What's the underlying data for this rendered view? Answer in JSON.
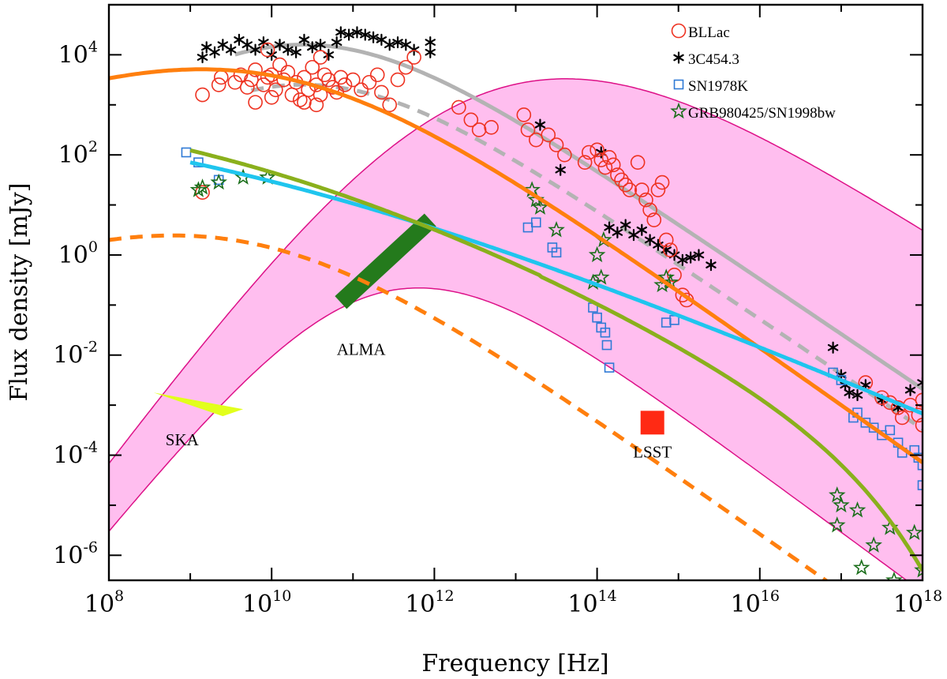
{
  "chart_data": {
    "type": "scatter",
    "title": "",
    "xlabel": "Frequency [Hz]",
    "ylabel": "Flux density [mJy]",
    "xscale": "log",
    "yscale": "log",
    "xlim_exp": [
      8,
      18
    ],
    "ylim_exp": [
      -6.5,
      5.0
    ],
    "x_ticks_exp": [
      8,
      10,
      12,
      14,
      16,
      18
    ],
    "y_ticks_exp": [
      -6,
      -4,
      -2,
      0,
      2,
      4
    ],
    "tick_base": "10",
    "legend_position": "top-right",
    "series": [
      {
        "name": "BLLac",
        "marker": "circle",
        "color": "#ee3322",
        "points": [
          [
            9.15,
            3.2
          ],
          [
            9.35,
            3.4
          ],
          [
            9.38,
            3.55
          ],
          [
            9.55,
            3.45
          ],
          [
            9.62,
            3.6
          ],
          [
            9.7,
            3.35
          ],
          [
            9.75,
            3.5
          ],
          [
            9.8,
            3.7
          ],
          [
            9.9,
            3.4
          ],
          [
            9.95,
            3.55
          ],
          [
            10.0,
            3.6
          ],
          [
            10.05,
            3.3
          ],
          [
            10.1,
            3.8
          ],
          [
            10.15,
            3.5
          ],
          [
            10.2,
            3.65
          ],
          [
            10.25,
            3.2
          ],
          [
            10.3,
            3.45
          ],
          [
            10.35,
            3.1
          ],
          [
            10.4,
            3.55
          ],
          [
            10.45,
            3.3
          ],
          [
            10.5,
            3.75
          ],
          [
            10.55,
            3.4
          ],
          [
            10.6,
            3.2
          ],
          [
            10.65,
            3.6
          ],
          [
            10.7,
            3.5
          ],
          [
            10.75,
            3.35
          ],
          [
            10.8,
            3.25
          ],
          [
            10.85,
            3.55
          ],
          [
            10.9,
            3.4
          ],
          [
            11.0,
            3.5
          ],
          [
            11.1,
            3.3
          ],
          [
            11.2,
            3.45
          ],
          [
            11.3,
            3.6
          ],
          [
            11.35,
            3.25
          ],
          [
            11.45,
            3.0
          ],
          [
            11.55,
            3.5
          ],
          [
            11.65,
            3.75
          ],
          [
            11.75,
            3.95
          ],
          [
            9.8,
            3.05
          ],
          [
            10.0,
            3.15
          ],
          [
            10.4,
            3.05
          ],
          [
            10.55,
            3.0
          ],
          [
            9.95,
            4.1
          ],
          [
            10.6,
            3.95
          ],
          [
            12.3,
            2.95
          ],
          [
            12.45,
            2.7
          ],
          [
            12.55,
            2.5
          ],
          [
            12.7,
            2.55
          ],
          [
            13.1,
            2.8
          ],
          [
            13.15,
            2.5
          ],
          [
            13.25,
            2.3
          ],
          [
            13.4,
            2.4
          ],
          [
            13.5,
            2.2
          ],
          [
            13.6,
            2.0
          ],
          [
            13.85,
            1.85
          ],
          [
            13.9,
            2.05
          ],
          [
            14.0,
            2.1
          ],
          [
            14.05,
            1.9
          ],
          [
            14.1,
            1.75
          ],
          [
            14.15,
            1.95
          ],
          [
            14.2,
            1.8
          ],
          [
            14.25,
            1.6
          ],
          [
            14.3,
            1.5
          ],
          [
            14.35,
            1.4
          ],
          [
            14.4,
            1.3
          ],
          [
            14.5,
            1.85
          ],
          [
            14.55,
            1.3
          ],
          [
            14.6,
            1.1
          ],
          [
            14.65,
            0.9
          ],
          [
            14.7,
            0.7
          ],
          [
            14.75,
            1.3
          ],
          [
            14.8,
            1.45
          ],
          [
            14.85,
            0.3
          ],
          [
            14.9,
            0.1
          ],
          [
            14.95,
            -0.4
          ],
          [
            15.05,
            -0.8
          ],
          [
            15.1,
            -0.9
          ],
          [
            17.3,
            -2.55
          ],
          [
            17.5,
            -2.85
          ],
          [
            17.6,
            -2.95
          ],
          [
            17.7,
            -3.05
          ],
          [
            17.75,
            -3.25
          ],
          [
            17.85,
            -3.0
          ],
          [
            17.95,
            -3.2
          ],
          [
            18.0,
            -3.4
          ],
          [
            18.0,
            -2.9
          ],
          [
            9.15,
            1.25
          ]
        ]
      },
      {
        "name": "3C454.3",
        "marker": "asterisk",
        "color": "#000000",
        "points": [
          [
            9.15,
            3.95
          ],
          [
            9.2,
            4.15
          ],
          [
            9.3,
            4.05
          ],
          [
            9.4,
            4.2
          ],
          [
            9.5,
            4.1
          ],
          [
            9.6,
            4.3
          ],
          [
            9.7,
            4.2
          ],
          [
            9.8,
            4.1
          ],
          [
            9.9,
            4.25
          ],
          [
            10.0,
            4.0
          ],
          [
            10.1,
            4.2
          ],
          [
            10.2,
            4.1
          ],
          [
            10.3,
            4.05
          ],
          [
            10.4,
            4.3
          ],
          [
            10.5,
            4.15
          ],
          [
            10.6,
            4.2
          ],
          [
            10.7,
            4.0
          ],
          [
            10.8,
            4.25
          ],
          [
            10.85,
            4.45
          ],
          [
            10.95,
            4.4
          ],
          [
            11.05,
            4.45
          ],
          [
            11.15,
            4.4
          ],
          [
            11.25,
            4.35
          ],
          [
            11.35,
            4.3
          ],
          [
            11.45,
            4.2
          ],
          [
            11.55,
            4.25
          ],
          [
            11.65,
            4.2
          ],
          [
            11.75,
            4.1
          ],
          [
            11.95,
            4.25
          ],
          [
            11.95,
            4.05
          ],
          [
            13.3,
            2.6
          ],
          [
            13.55,
            1.7
          ],
          [
            14.05,
            2.05
          ],
          [
            14.15,
            0.55
          ],
          [
            14.25,
            0.45
          ],
          [
            14.35,
            0.6
          ],
          [
            14.45,
            0.4
          ],
          [
            14.55,
            0.5
          ],
          [
            14.65,
            0.3
          ],
          [
            14.75,
            0.2
          ],
          [
            14.85,
            0.1
          ],
          [
            14.95,
            0.0
          ],
          [
            15.05,
            -0.1
          ],
          [
            15.15,
            -0.05
          ],
          [
            15.25,
            0.0
          ],
          [
            15.4,
            -0.2
          ],
          [
            16.9,
            -1.85
          ],
          [
            17.0,
            -2.4
          ],
          [
            17.05,
            -2.6
          ],
          [
            17.1,
            -2.75
          ],
          [
            17.2,
            -2.8
          ],
          [
            17.3,
            -2.6
          ],
          [
            17.5,
            -2.9
          ],
          [
            17.7,
            -3.05
          ],
          [
            17.85,
            -2.7
          ],
          [
            18.0,
            -2.55
          ]
        ]
      },
      {
        "name": "SN1978K",
        "marker": "square",
        "color": "#2f7ad6",
        "points": [
          [
            8.95,
            2.05
          ],
          [
            9.1,
            1.85
          ],
          [
            9.35,
            1.5
          ],
          [
            13.15,
            0.55
          ],
          [
            13.25,
            0.65
          ],
          [
            13.45,
            0.15
          ],
          [
            13.5,
            0.05
          ],
          [
            13.95,
            -1.05
          ],
          [
            14.0,
            -1.25
          ],
          [
            14.05,
            -1.45
          ],
          [
            14.1,
            -1.55
          ],
          [
            14.12,
            -1.8
          ],
          [
            14.15,
            -2.25
          ],
          [
            14.85,
            -1.35
          ],
          [
            14.95,
            -1.3
          ],
          [
            16.9,
            -2.35
          ],
          [
            17.0,
            -2.5
          ],
          [
            17.15,
            -3.25
          ],
          [
            17.2,
            -3.15
          ],
          [
            17.3,
            -3.35
          ],
          [
            17.4,
            -3.45
          ],
          [
            17.5,
            -3.6
          ],
          [
            17.6,
            -3.5
          ],
          [
            17.7,
            -3.75
          ],
          [
            17.75,
            -3.95
          ],
          [
            17.9,
            -3.9
          ],
          [
            17.95,
            -4.05
          ],
          [
            18.0,
            -4.2
          ],
          [
            18.0,
            -4.6
          ]
        ]
      },
      {
        "name": "GRB980425/SN1998bw",
        "marker": "star",
        "color": "#1a6e1a",
        "points": [
          [
            9.1,
            1.3
          ],
          [
            9.15,
            1.35
          ],
          [
            9.35,
            1.45
          ],
          [
            9.65,
            1.55
          ],
          [
            9.95,
            1.55
          ],
          [
            13.2,
            1.3
          ],
          [
            13.25,
            1.1
          ],
          [
            13.3,
            0.95
          ],
          [
            13.5,
            0.5
          ],
          [
            13.95,
            -0.55
          ],
          [
            14.0,
            0.0
          ],
          [
            14.05,
            -0.45
          ],
          [
            14.08,
            0.3
          ],
          [
            14.8,
            -0.6
          ],
          [
            14.85,
            -0.45
          ],
          [
            14.9,
            -0.55
          ],
          [
            16.95,
            -4.8
          ],
          [
            17.0,
            -5.0
          ],
          [
            17.2,
            -5.1
          ],
          [
            17.4,
            -5.8
          ],
          [
            17.6,
            -5.45
          ],
          [
            17.9,
            -5.55
          ],
          [
            18.0,
            -6.3
          ],
          [
            16.95,
            -5.4
          ],
          [
            17.25,
            -6.25
          ],
          [
            17.65,
            -6.5
          ]
        ]
      }
    ],
    "model_curves": [
      {
        "name": "grey-solid",
        "color": "#b3b3b3",
        "dashed": false,
        "peak_x": 10.3,
        "peak_y": 4.2,
        "slope_lo": 1.2,
        "slope_hi": -1.1,
        "smooth": 1.0,
        "x_range": [
          9.55,
          18.0
        ]
      },
      {
        "name": "grey-dashed",
        "color": "#b3b3b3",
        "dashed": true,
        "peak_x": 10.3,
        "peak_y": 3.4,
        "slope_lo": 1.2,
        "slope_hi": -1.1,
        "smooth": 1.0,
        "x_range": [
          9.75,
          18.0
        ]
      },
      {
        "name": "orange-solid",
        "color": "#ff7f0e",
        "dashed": false,
        "peak_x": 9.95,
        "peak_y": 3.6,
        "slope_lo": 0.6,
        "slope_hi": -1.15,
        "smooth": 1.25,
        "x_range": [
          8.0,
          18.0
        ]
      },
      {
        "name": "orange-dashed",
        "color": "#ff7f0e",
        "dashed": true,
        "peak_x": 9.6,
        "peak_y": 0.28,
        "slope_lo": 0.6,
        "slope_hi": -1.15,
        "smooth": 1.25,
        "x_range": [
          8.0,
          18.0
        ]
      },
      {
        "name": "cyan-solid",
        "color": "#1fc5ee",
        "dashed": false,
        "peak_x": 9.0,
        "peak_y": 1.85,
        "slope_lo": 0.0,
        "slope_hi": -0.7,
        "smooth": 2.8,
        "x_range": [
          9.0,
          18.0
        ]
      },
      {
        "name": "olive-solid",
        "color": "#8ab01c",
        "dashed": false,
        "peak_x": 9.9,
        "peak_y": 1.7,
        "slope_lo": 0.0,
        "slope_hi": -0.95,
        "smooth": 2.6,
        "cutoff_x": 16.3,
        "cutoff_k": 0.7,
        "x_range": [
          9.0,
          18.0
        ]
      }
    ],
    "shaded_band": {
      "color": "#ffbbee",
      "edge_color": "#dd1188",
      "upper": {
        "peak_x": 12.65,
        "peak_y": 3.25,
        "slope_lo": 2.2,
        "slope_hi": -1.05,
        "smooth": 1.3
      },
      "lower": {
        "peak_x": 11.35,
        "peak_y": -0.75,
        "slope_lo": 2.0,
        "slope_hi": -1.2,
        "smooth": 0.9
      }
    },
    "instruments": [
      {
        "name": "SKA",
        "shape": "parallelogram",
        "color": "#e2ff1c",
        "points": [
          [
            8.55,
            -2.75
          ],
          [
            9.65,
            -3.08
          ],
          [
            9.4,
            -3.22
          ],
          [
            8.55,
            -2.75
          ]
        ],
        "label_at": [
          8.9,
          -3.8
        ]
      },
      {
        "name": "ALMA",
        "shape": "band",
        "color": "#247a1c",
        "from": [
          10.85,
          -0.95
        ],
        "to": [
          11.95,
          0.7
        ],
        "label_at": [
          11.1,
          -2.0
        ]
      },
      {
        "name": "LSST",
        "shape": "square",
        "color": "#ff2a14",
        "at": [
          14.68,
          -3.35
        ],
        "label_at": [
          14.68,
          -4.05
        ]
      }
    ]
  }
}
